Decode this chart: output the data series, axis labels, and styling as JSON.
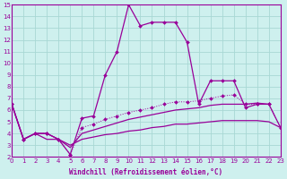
{
  "xlabel": "Windchill (Refroidissement éolien,°C)",
  "xlim": [
    0,
    23
  ],
  "ylim": [
    2,
    15
  ],
  "xticks": [
    0,
    1,
    2,
    3,
    4,
    5,
    6,
    7,
    8,
    9,
    10,
    11,
    12,
    13,
    14,
    15,
    16,
    17,
    18,
    19,
    20,
    21,
    22,
    23
  ],
  "yticks": [
    2,
    3,
    4,
    5,
    6,
    7,
    8,
    9,
    10,
    11,
    12,
    13,
    14,
    15
  ],
  "bg_color": "#cef0ee",
  "grid_color": "#a8d8d4",
  "line_color": "#990099",
  "line1_x": [
    0,
    1,
    2,
    3,
    4,
    5,
    6,
    7,
    8,
    9,
    10,
    11,
    12,
    13,
    14,
    15,
    16,
    17,
    18,
    19,
    20,
    21,
    22
  ],
  "line1_y": [
    6.5,
    3.5,
    4.0,
    4.0,
    3.5,
    2.2,
    5.3,
    5.5,
    9.0,
    11.0,
    15.0,
    13.2,
    13.5,
    13.5,
    13.5,
    11.8,
    6.5,
    8.5,
    8.5,
    8.5,
    6.2,
    6.5,
    6.5
  ],
  "line2_x": [
    0,
    1,
    2,
    3,
    4,
    5,
    6,
    7,
    8,
    9,
    10,
    11,
    12,
    13,
    14,
    15,
    16,
    17,
    18,
    19,
    20,
    21,
    22,
    23
  ],
  "line2_y": [
    6.5,
    3.5,
    4.0,
    4.0,
    3.5,
    2.2,
    4.5,
    4.8,
    5.2,
    5.5,
    5.8,
    6.0,
    6.2,
    6.5,
    6.7,
    6.7,
    6.8,
    7.0,
    7.2,
    7.3,
    6.5,
    6.5,
    6.5,
    4.5
  ],
  "line3_x": [
    0,
    1,
    2,
    3,
    4,
    5,
    6,
    7,
    8,
    9,
    10,
    11,
    12,
    13,
    14,
    15,
    16,
    17,
    18,
    19,
    20,
    21,
    22,
    23
  ],
  "line3_y": [
    6.5,
    3.5,
    4.0,
    4.0,
    3.5,
    2.8,
    4.0,
    4.3,
    4.6,
    4.9,
    5.2,
    5.4,
    5.6,
    5.8,
    6.0,
    6.1,
    6.2,
    6.4,
    6.5,
    6.5,
    6.5,
    6.6,
    6.5,
    4.5
  ],
  "line4_x": [
    0,
    1,
    2,
    3,
    4,
    5,
    6,
    7,
    8,
    9,
    10,
    11,
    12,
    13,
    14,
    15,
    16,
    17,
    18,
    19,
    20,
    21,
    22,
    23
  ],
  "line4_y": [
    6.5,
    3.5,
    4.0,
    3.5,
    3.5,
    3.0,
    3.5,
    3.7,
    3.9,
    4.0,
    4.2,
    4.3,
    4.5,
    4.6,
    4.8,
    4.8,
    4.9,
    5.0,
    5.1,
    5.1,
    5.1,
    5.1,
    5.0,
    4.5
  ]
}
